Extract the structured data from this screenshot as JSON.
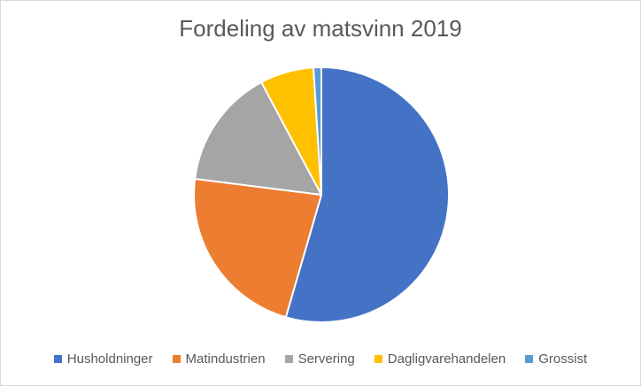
{
  "chart_data": {
    "type": "pie",
    "title": "Fordeling av matsvinn 2019",
    "legend_position": "bottom",
    "slices": [
      {
        "label": "Husholdninger",
        "value": 54.5,
        "color": "#4472C4"
      },
      {
        "label": "Matindustrien",
        "value": 22.5,
        "color": "#ED7D31"
      },
      {
        "label": "Servering",
        "value": 15.2,
        "color": "#A5A5A5"
      },
      {
        "label": "Dagligvarehandelen",
        "value": 6.8,
        "color": "#FFC000"
      },
      {
        "label": "Grossist",
        "value": 1.0,
        "color": "#5B9BD5"
      }
    ]
  }
}
